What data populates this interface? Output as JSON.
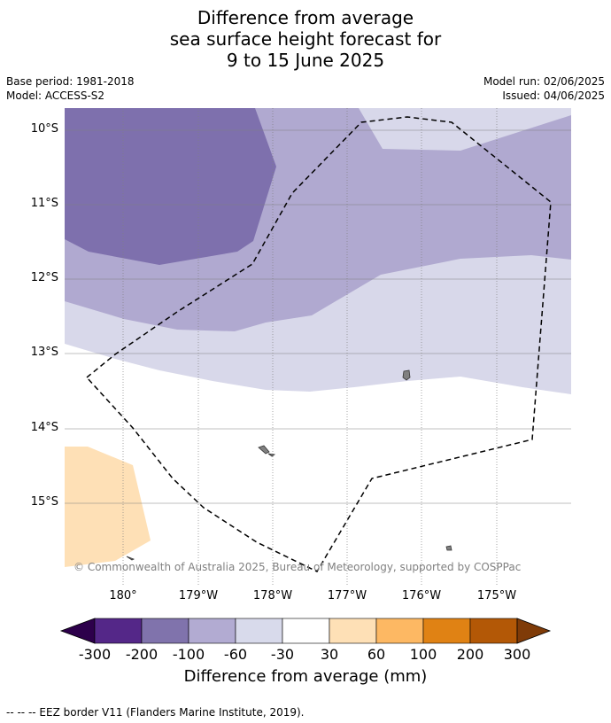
{
  "title": {
    "line1": "Difference from average",
    "line2": "sea surface height forecast for",
    "line3": "9 to 15 June 2025"
  },
  "meta": {
    "base_period": "Base period: 1981-2018",
    "model": "Model: ACCESS-S2",
    "model_run": "Model run: 02/06/2025",
    "issued": "Issued: 04/06/2025"
  },
  "map": {
    "lat_ticks": [
      "10°S",
      "11°S",
      "12°S",
      "13°S",
      "14°S",
      "15°S"
    ],
    "lon_ticks": [
      "180°",
      "179°W",
      "178°W",
      "177°W",
      "176°W",
      "175°W"
    ],
    "copyright": "© Commonwealth of Australia 2025, Bureau of Meteorology, supported by COSPPac",
    "colors": {
      "level_-200_-100": "#7e70ad",
      "level_-100_-60": "#b0a9d0",
      "level_-60_-30": "#d8d8ea",
      "level_30_60": "#fee0b6",
      "land": "#808080",
      "eez_border": "#000000",
      "grid": "#808080"
    }
  },
  "colorbar": {
    "labels": [
      "-300",
      "-200",
      "-100",
      "-60",
      "-30",
      "30",
      "60",
      "100",
      "200",
      "300"
    ],
    "colors": [
      "#2d004b",
      "#542788",
      "#8073ac",
      "#b2abd2",
      "#d8daeb",
      "#ffffff",
      "#fee0b6",
      "#fdb863",
      "#e08214",
      "#b35806",
      "#7f3b08"
    ],
    "title": "Difference from average (mm)"
  },
  "legend_note": "--  --  -- EEZ border V11 (Flanders Marine Institute, 2019)."
}
